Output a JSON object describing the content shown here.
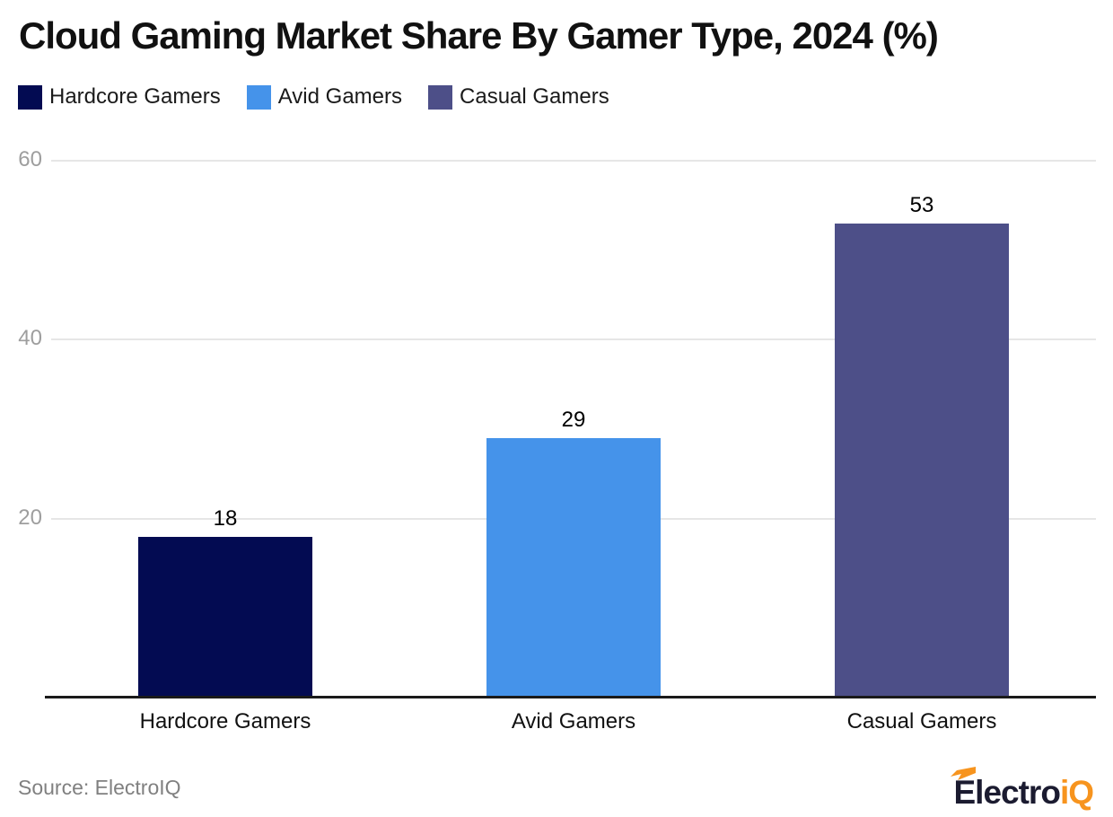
{
  "title": "Cloud Gaming Market Share By Gamer Type, 2024 (%)",
  "legend": [
    {
      "label": "Hardcore Gamers",
      "color": "#030b52"
    },
    {
      "label": "Avid Gamers",
      "color": "#4593ea"
    },
    {
      "label": "Casual Gamers",
      "color": "#4d4f88"
    }
  ],
  "chart_data": {
    "type": "bar",
    "title": "Cloud Gaming Market Share By Gamer Type, 2024 (%)",
    "categories": [
      "Hardcore Gamers",
      "Avid Gamers",
      "Casual Gamers"
    ],
    "values": [
      18,
      29,
      53
    ],
    "colors": [
      "#030b52",
      "#4593ea",
      "#4d4f88"
    ],
    "xlabel": "",
    "ylabel": "",
    "ylim": [
      0,
      62
    ],
    "yticks": [
      20,
      40,
      60
    ],
    "grid": true,
    "legend_position": "top",
    "value_labels": true
  },
  "axis_style": {
    "tick_color": "#9e9e9e",
    "grid_color": "#e6e6e6",
    "baseline_color": "#1a1a1a"
  },
  "footer": {
    "source": "Source: ElectroIQ",
    "logo": {
      "text_dark": "Electro",
      "text_accent": "iQ",
      "dark_color": "#1b1b30",
      "accent_color": "#f7941e"
    }
  }
}
